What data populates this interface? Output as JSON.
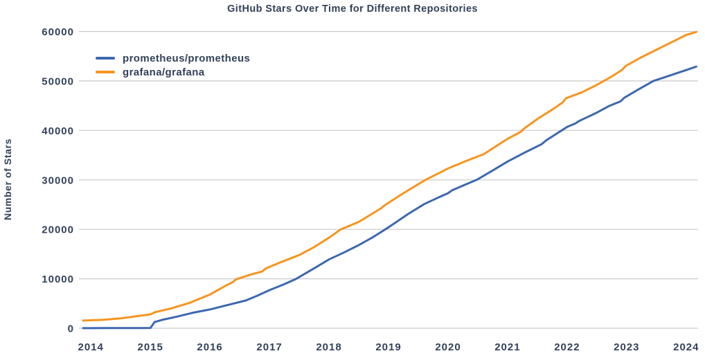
{
  "figure": {
    "title": "GitHub Stars Over Time for Different Repositories",
    "y_axis_title": "Number of Stars"
  },
  "colors": {
    "text": "#32415a",
    "grid": "#c9c9c9",
    "background": "#ffffff",
    "prometheus_line": "#3c68b0",
    "grafana_line": "#f7941e"
  },
  "chart_data": {
    "type": "line",
    "title": "GitHub Stars Over Time for Different Repositories",
    "xlabel": "",
    "ylabel": "Number of Stars",
    "x_ticks": [
      2014,
      2015,
      2016,
      2017,
      2018,
      2019,
      2020,
      2021,
      2022,
      2023,
      2024
    ],
    "y_ticks": [
      0,
      10000,
      20000,
      30000,
      40000,
      50000,
      60000
    ],
    "xlim": [
      2013.8,
      2024.2
    ],
    "ylim": [
      0,
      60000
    ],
    "grid": "horizontal-only",
    "legend_position": "upper-left-inside",
    "series": [
      {
        "name": "prometheus/prometheus",
        "color": "#3c68b0",
        "points": [
          [
            2013.87,
            20
          ],
          [
            2014.3,
            30
          ],
          [
            2014.7,
            40
          ],
          [
            2015.0,
            60
          ],
          [
            2015.07,
            1250
          ],
          [
            2015.2,
            1700
          ],
          [
            2015.45,
            2350
          ],
          [
            2015.7,
            3100
          ],
          [
            2016.0,
            3800
          ],
          [
            2016.3,
            4700
          ],
          [
            2016.6,
            5600
          ],
          [
            2016.8,
            6600
          ],
          [
            2017.0,
            7700
          ],
          [
            2017.25,
            8900
          ],
          [
            2017.45,
            10000
          ],
          [
            2017.75,
            12100
          ],
          [
            2018.0,
            13900
          ],
          [
            2018.25,
            15300
          ],
          [
            2018.5,
            16800
          ],
          [
            2018.75,
            18500
          ],
          [
            2019.0,
            20400
          ],
          [
            2019.33,
            23100
          ],
          [
            2019.6,
            25100
          ],
          [
            2019.85,
            26500
          ],
          [
            2020.0,
            27300
          ],
          [
            2020.07,
            27900
          ],
          [
            2020.3,
            29100
          ],
          [
            2020.48,
            30000
          ],
          [
            2020.75,
            31900
          ],
          [
            2021.0,
            33700
          ],
          [
            2021.3,
            35600
          ],
          [
            2021.57,
            37200
          ],
          [
            2021.65,
            38000
          ],
          [
            2022.0,
            40700
          ],
          [
            2022.14,
            41400
          ],
          [
            2022.2,
            41900
          ],
          [
            2022.5,
            43600
          ],
          [
            2022.7,
            44900
          ],
          [
            2022.9,
            45900
          ],
          [
            2022.96,
            46600
          ],
          [
            2023.2,
            48300
          ],
          [
            2023.45,
            50000
          ],
          [
            2023.7,
            51000
          ],
          [
            2024.0,
            52200
          ],
          [
            2024.17,
            52900
          ]
        ]
      },
      {
        "name": "grafana/grafana",
        "color": "#f7941e",
        "points": [
          [
            2013.87,
            1550
          ],
          [
            2014.2,
            1700
          ],
          [
            2014.5,
            2000
          ],
          [
            2014.75,
            2400
          ],
          [
            2015.0,
            2800
          ],
          [
            2015.08,
            3250
          ],
          [
            2015.35,
            4000
          ],
          [
            2015.65,
            5100
          ],
          [
            2016.0,
            6800
          ],
          [
            2016.25,
            8500
          ],
          [
            2016.38,
            9300
          ],
          [
            2016.44,
            9900
          ],
          [
            2016.7,
            10900
          ],
          [
            2016.88,
            11500
          ],
          [
            2016.94,
            12100
          ],
          [
            2017.2,
            13400
          ],
          [
            2017.5,
            14800
          ],
          [
            2017.75,
            16400
          ],
          [
            2018.0,
            18300
          ],
          [
            2018.2,
            20000
          ],
          [
            2018.5,
            21500
          ],
          [
            2018.88,
            24300
          ],
          [
            2018.94,
            24900
          ],
          [
            2019.25,
            27300
          ],
          [
            2019.62,
            30000
          ],
          [
            2019.85,
            31400
          ],
          [
            2020.0,
            32300
          ],
          [
            2020.3,
            33800
          ],
          [
            2020.6,
            35200
          ],
          [
            2021.0,
            38300
          ],
          [
            2021.22,
            39700
          ],
          [
            2021.28,
            40400
          ],
          [
            2021.5,
            42300
          ],
          [
            2021.75,
            44200
          ],
          [
            2021.93,
            45700
          ],
          [
            2021.98,
            46500
          ],
          [
            2022.25,
            47700
          ],
          [
            2022.5,
            49200
          ],
          [
            2022.75,
            50900
          ],
          [
            2022.93,
            52300
          ],
          [
            2022.98,
            53000
          ],
          [
            2023.25,
            54800
          ],
          [
            2023.5,
            56300
          ],
          [
            2023.75,
            57800
          ],
          [
            2024.0,
            59300
          ],
          [
            2024.17,
            59900
          ]
        ]
      }
    ]
  }
}
